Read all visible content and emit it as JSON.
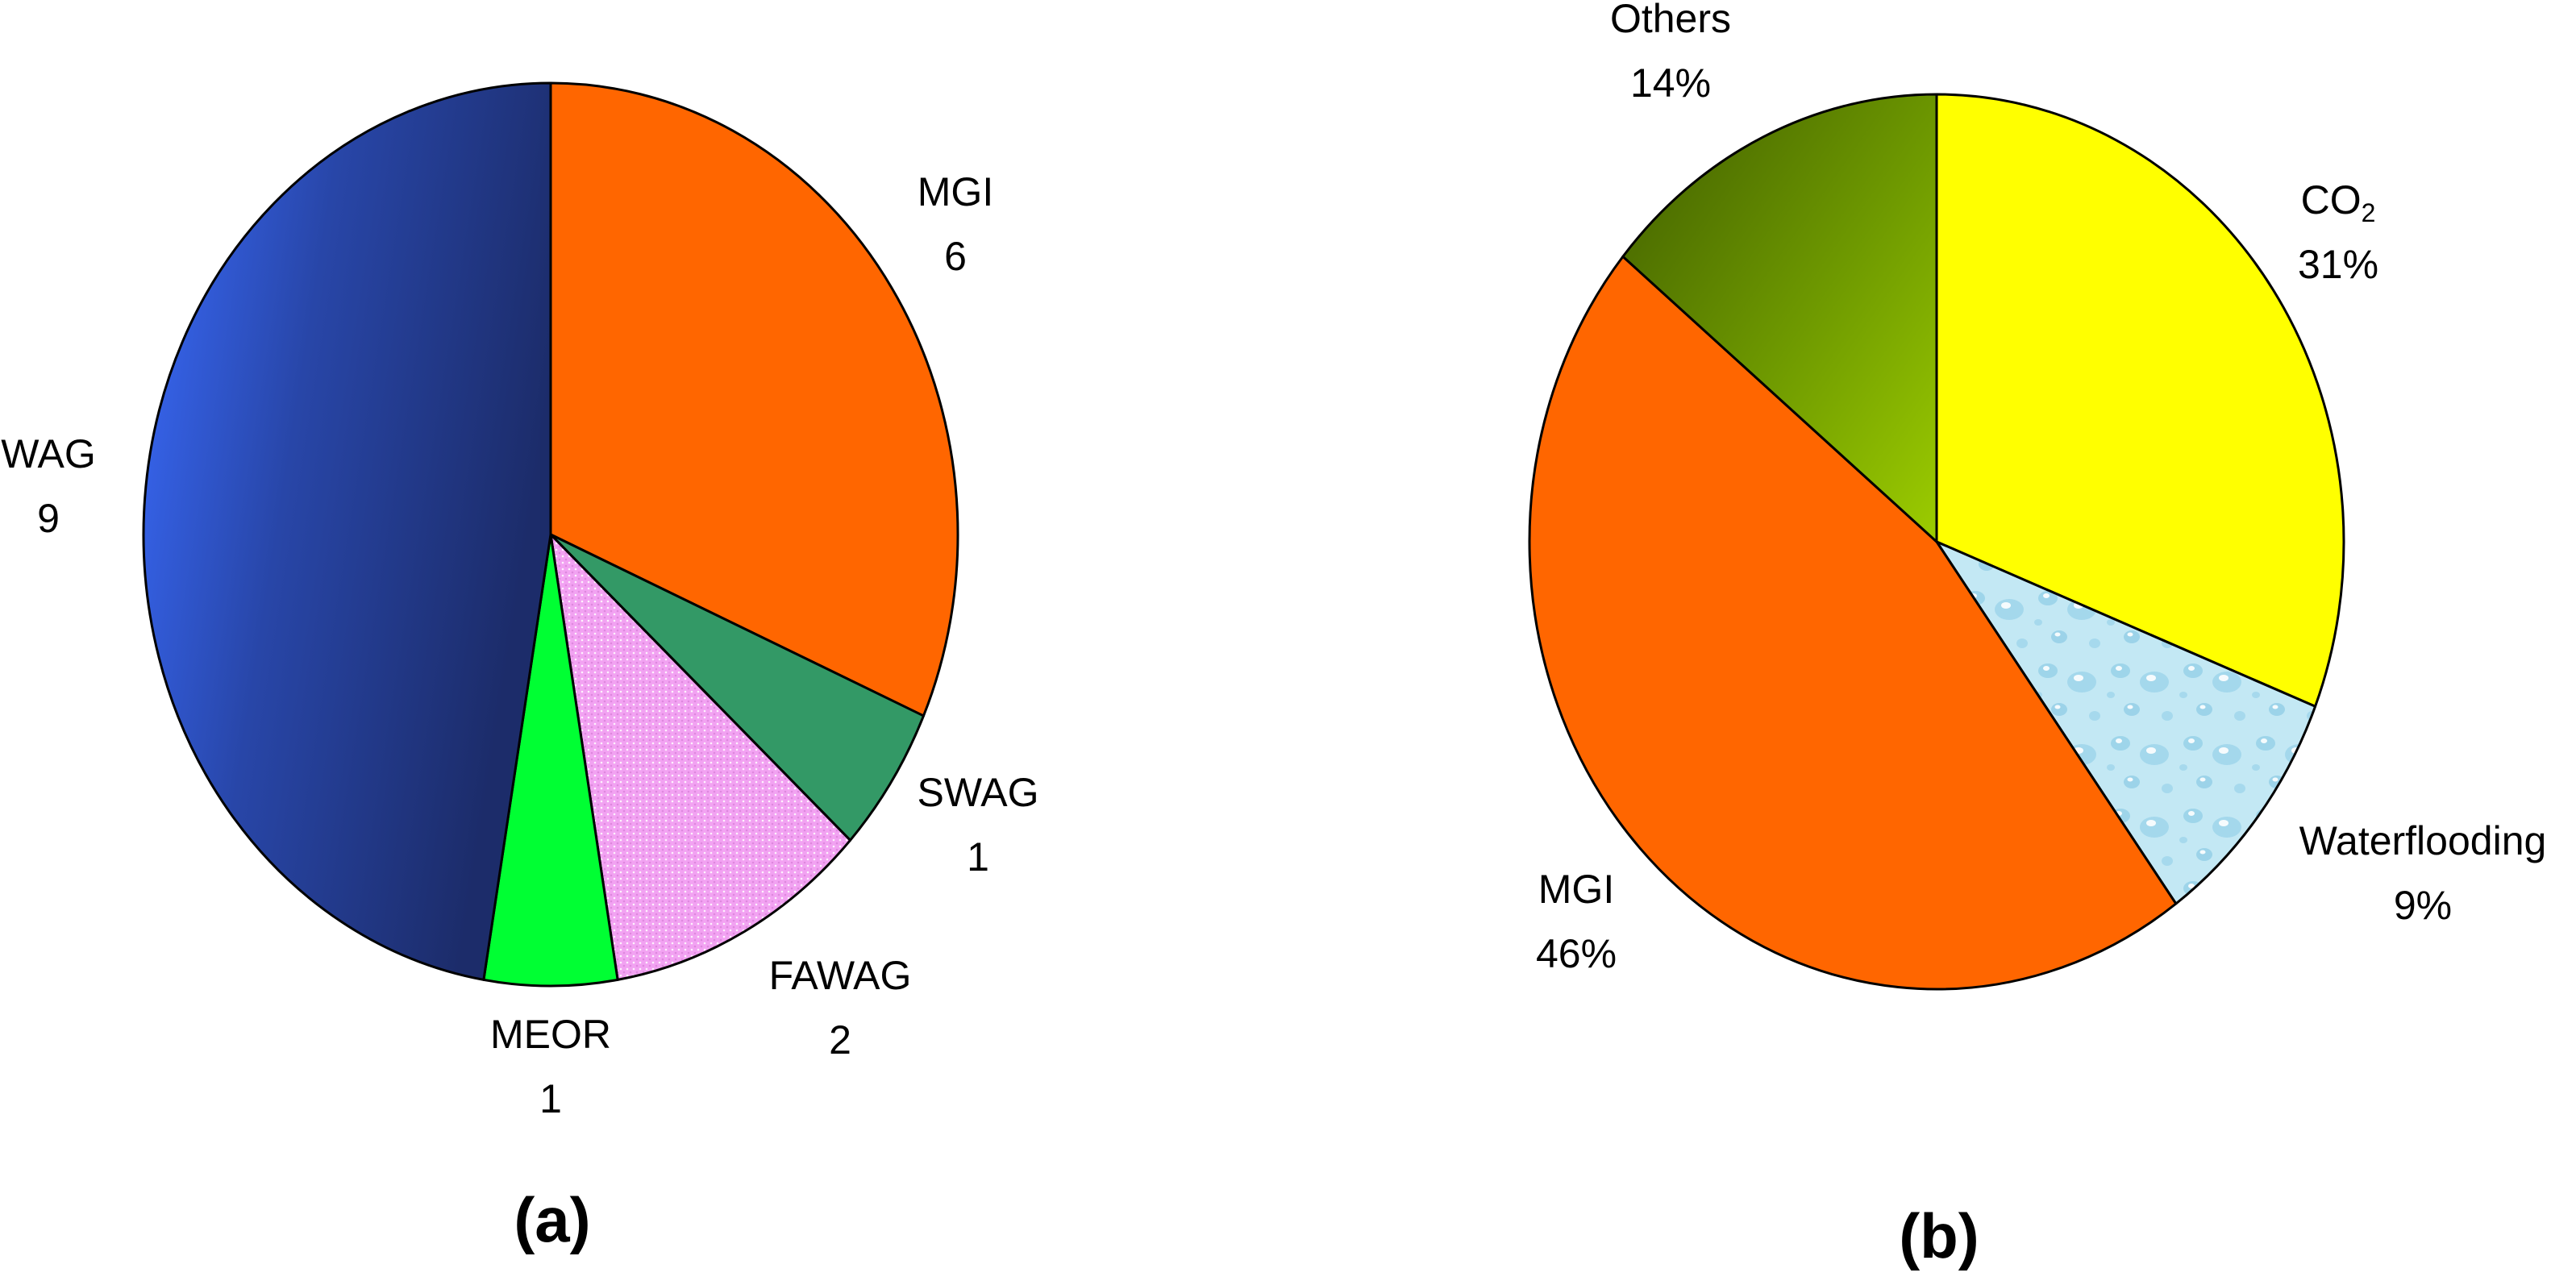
{
  "chart_data": [
    {
      "type": "pie",
      "panel_label": "(a)",
      "start_angle_deg": 0,
      "direction": "clockwise",
      "slices": [
        {
          "label": "MGI",
          "value_label": "6",
          "value": 6,
          "color": "#ff6600",
          "fill_style": "solid"
        },
        {
          "label": "SWAG",
          "value_label": "1",
          "value": 1,
          "color": "#339966",
          "fill_style": "solid"
        },
        {
          "label": "FAWAG",
          "value_label": "2",
          "value": 2,
          "color": "#f0a0f0",
          "fill_style": "dotted-pink"
        },
        {
          "label": "MEOR",
          "value_label": "1",
          "value": 1,
          "color": "#00ff33",
          "fill_style": "solid"
        },
        {
          "label": "WAG",
          "value_label": "9",
          "value": 9,
          "color": "#2a4fb8",
          "fill_style": "blue-gradient"
        }
      ]
    },
    {
      "type": "pie",
      "panel_label": "(b)",
      "start_angle_deg": 0,
      "direction": "clockwise",
      "slices": [
        {
          "label": "CO",
          "label_subscript": "2",
          "value_label": "31%",
          "value": 31,
          "color": "#ffff00",
          "fill_style": "solid"
        },
        {
          "label": "Waterflooding",
          "value_label": "9%",
          "value": 9,
          "color": "#bfe8f5",
          "fill_style": "water-droplets"
        },
        {
          "label": "MGI",
          "value_label": "46%",
          "value": 46,
          "color": "#ff6600",
          "fill_style": "solid"
        },
        {
          "label": "Others",
          "value_label": "14%",
          "value": 14,
          "color": "#6e9a00",
          "fill_style": "green-gradient"
        }
      ]
    }
  ]
}
